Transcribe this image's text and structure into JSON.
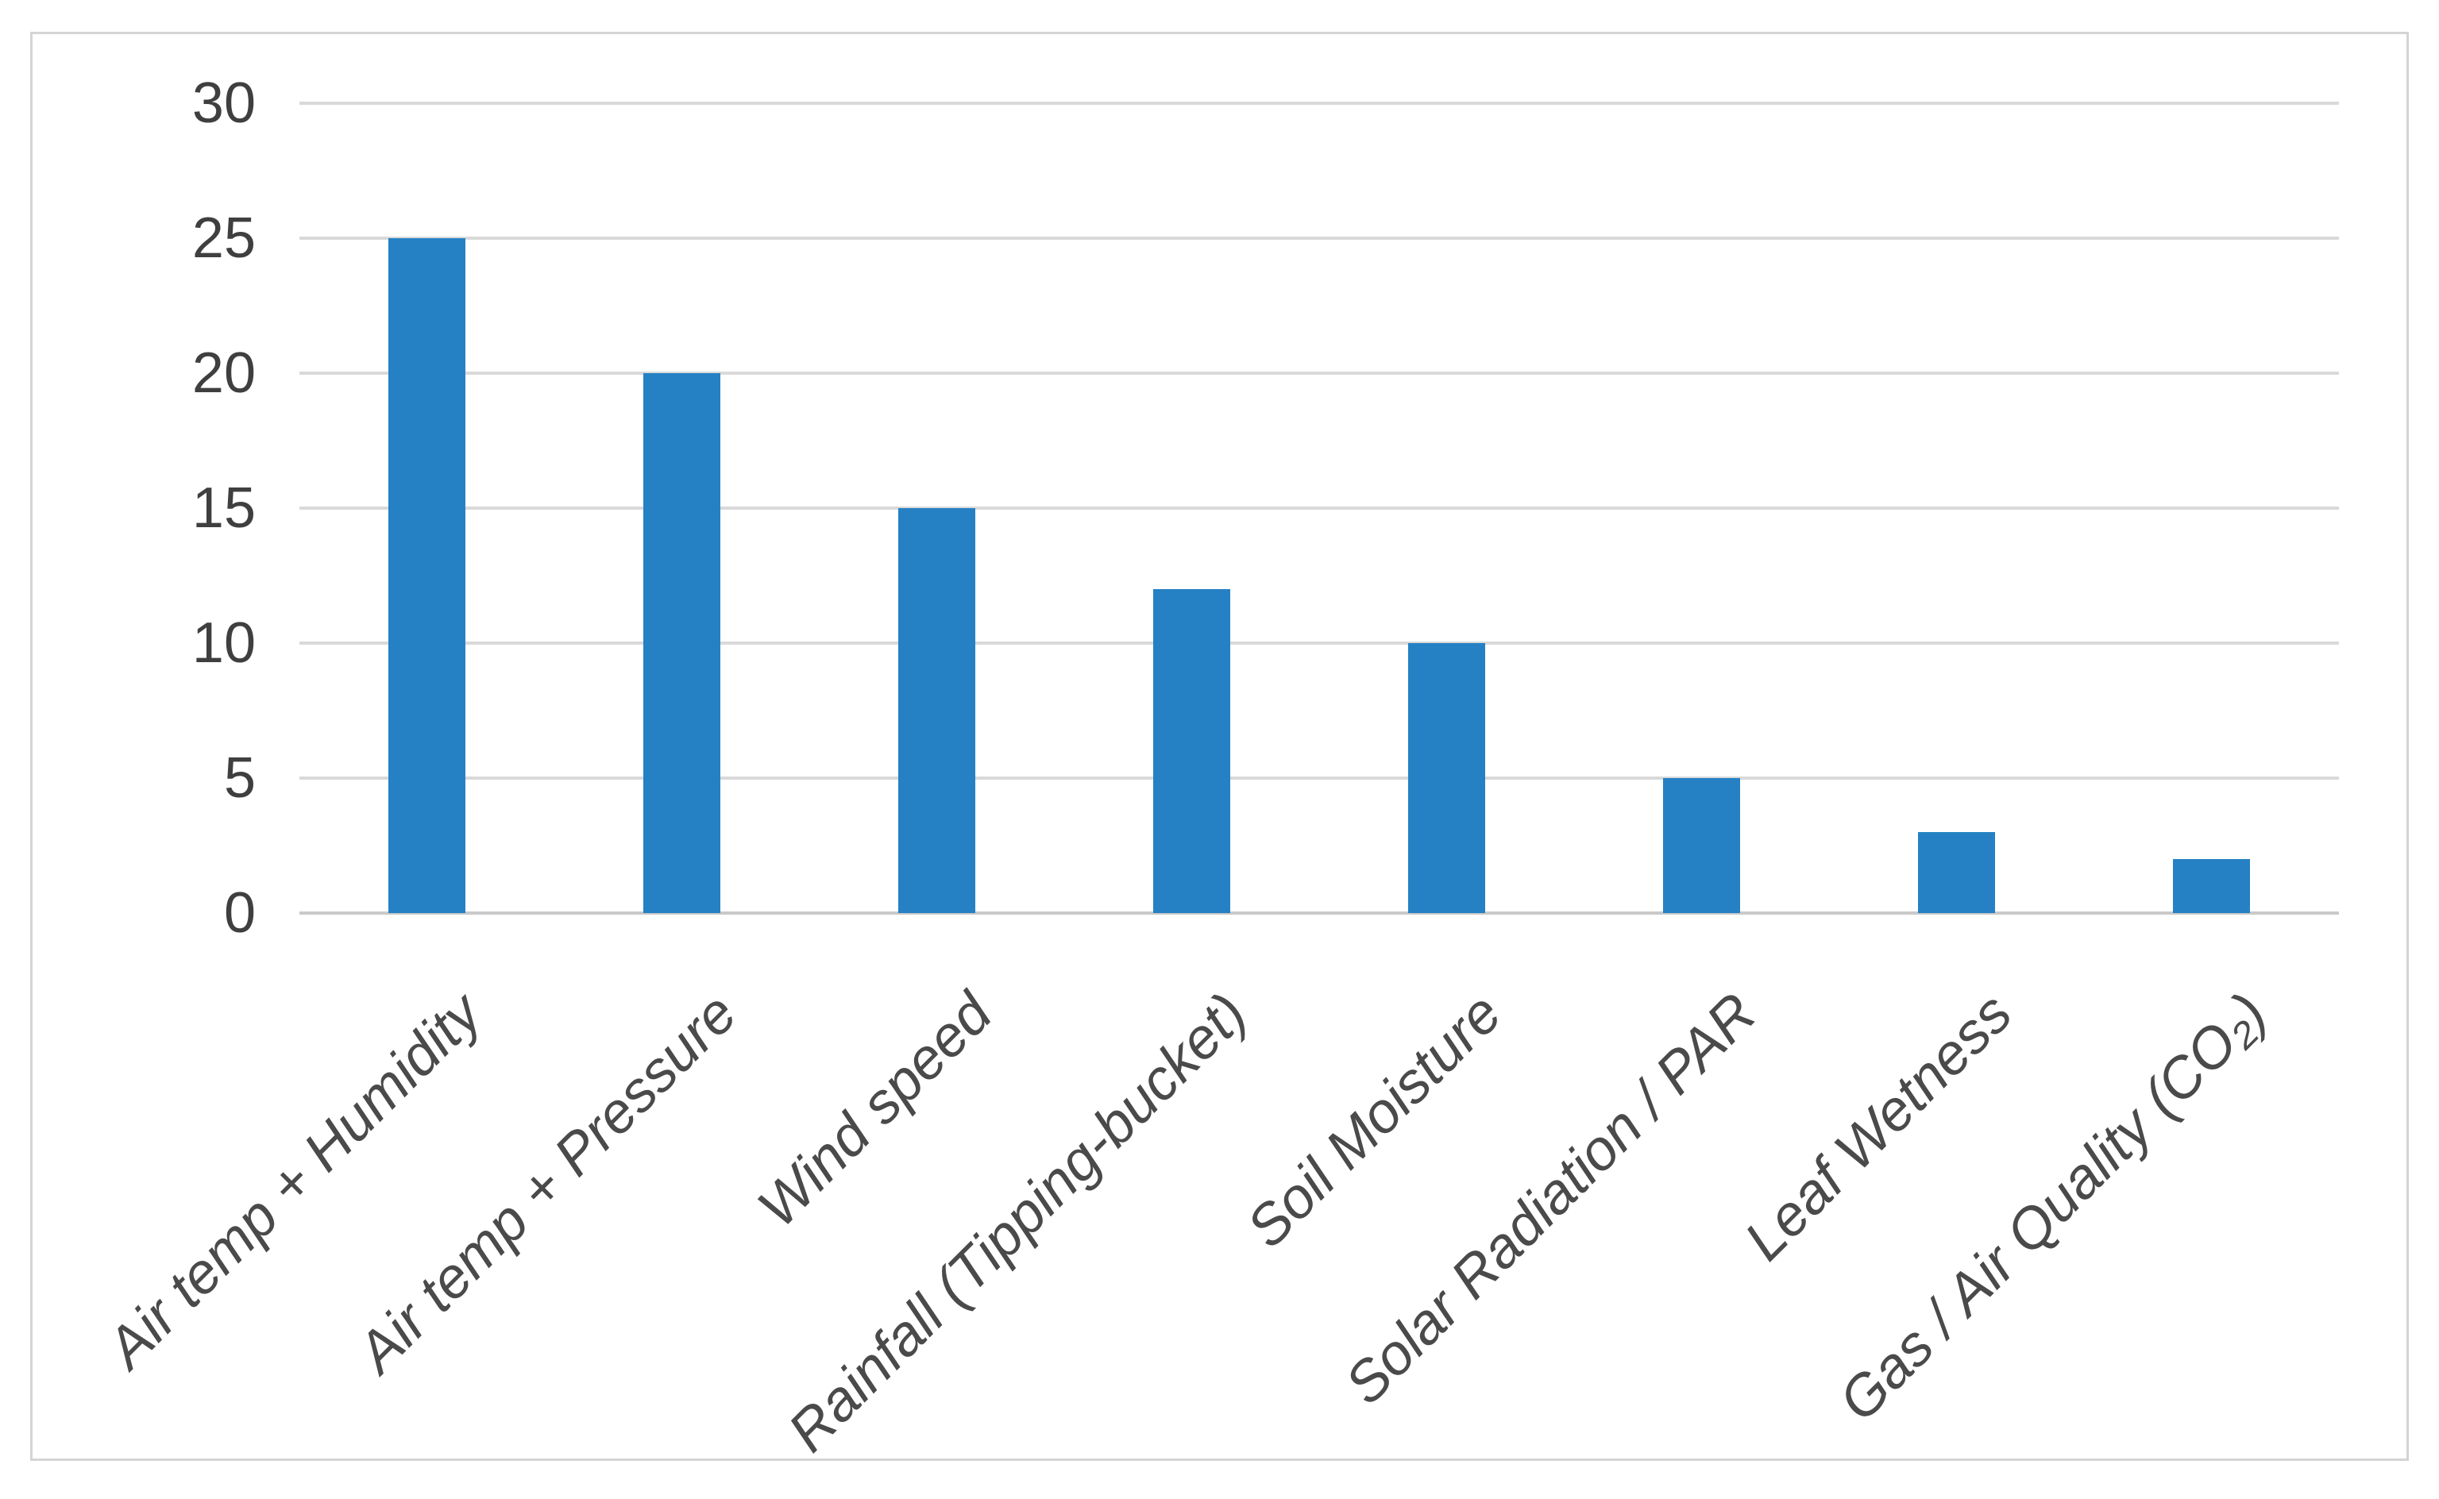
{
  "chart_data": {
    "type": "bar",
    "title": "",
    "xlabel": "",
    "ylabel": "",
    "categories": [
      "Air temp + Humidity",
      "Air temp + Pressure",
      "Wind speed",
      "Rainfall (Tipping-bucket)",
      "Soil Moisture",
      "Solar Radiation / PAR",
      "Leaf Wetness",
      "Gas / Air Quality (CO₂)"
    ],
    "values": [
      25,
      20,
      15,
      12,
      10,
      5,
      3,
      2
    ],
    "ylim": [
      0,
      30
    ],
    "yticks": [
      0,
      5,
      10,
      15,
      20,
      25,
      30
    ],
    "grid": true,
    "legend": false,
    "bar_color": "#2581C4",
    "gridline_color": "#D9D9D9",
    "axis_line_color": "#C9C9C9",
    "tick_label_color": "#3F3F3F",
    "category_label_color": "#4A4A4A",
    "frame_border_color": "#D4D4D4",
    "background_color": "#FFFFFF"
  }
}
